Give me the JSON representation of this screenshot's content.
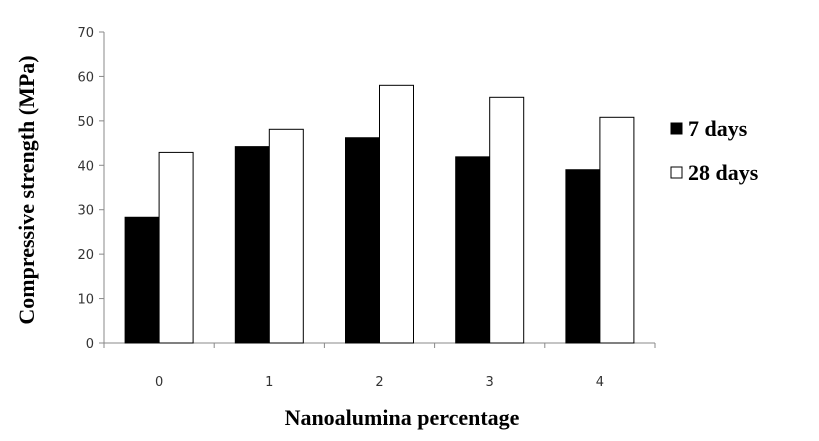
{
  "chart_data": {
    "type": "bar",
    "categories": [
      "0",
      "1",
      "2",
      "3",
      "4"
    ],
    "series": [
      {
        "name": "7 days",
        "values": [
          28.3,
          44.2,
          46.2,
          41.9,
          39.0
        ],
        "fill": "#000000"
      },
      {
        "name": "28 days",
        "values": [
          42.9,
          48.1,
          58.0,
          55.3,
          50.8
        ],
        "fill": "#ffffff"
      }
    ],
    "title": "",
    "xlabel": "Nanoalumina percentage",
    "ylabel": "Compressive strength (MPa)",
    "ylim": [
      0,
      70
    ],
    "yticks": [
      0,
      10,
      20,
      30,
      40,
      50,
      60,
      70
    ],
    "grid": false,
    "legend": "right"
  }
}
